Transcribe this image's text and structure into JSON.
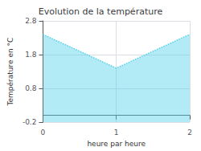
{
  "chart_data": {
    "type": "area",
    "title": "Evolution de la température",
    "xlabel": "heure par heure",
    "ylabel": "Température en °C",
    "x": [
      0,
      1,
      2
    ],
    "values": [
      2.4,
      1.4,
      2.4
    ],
    "xlim": [
      0,
      2
    ],
    "xticks": [
      0,
      1,
      2
    ],
    "ylim": [
      -0.2,
      2.8
    ],
    "yticks": [
      -0.2,
      0.8,
      1.8,
      2.8
    ],
    "color": "#55d0e8",
    "line_style": "dotted",
    "grid": true
  }
}
